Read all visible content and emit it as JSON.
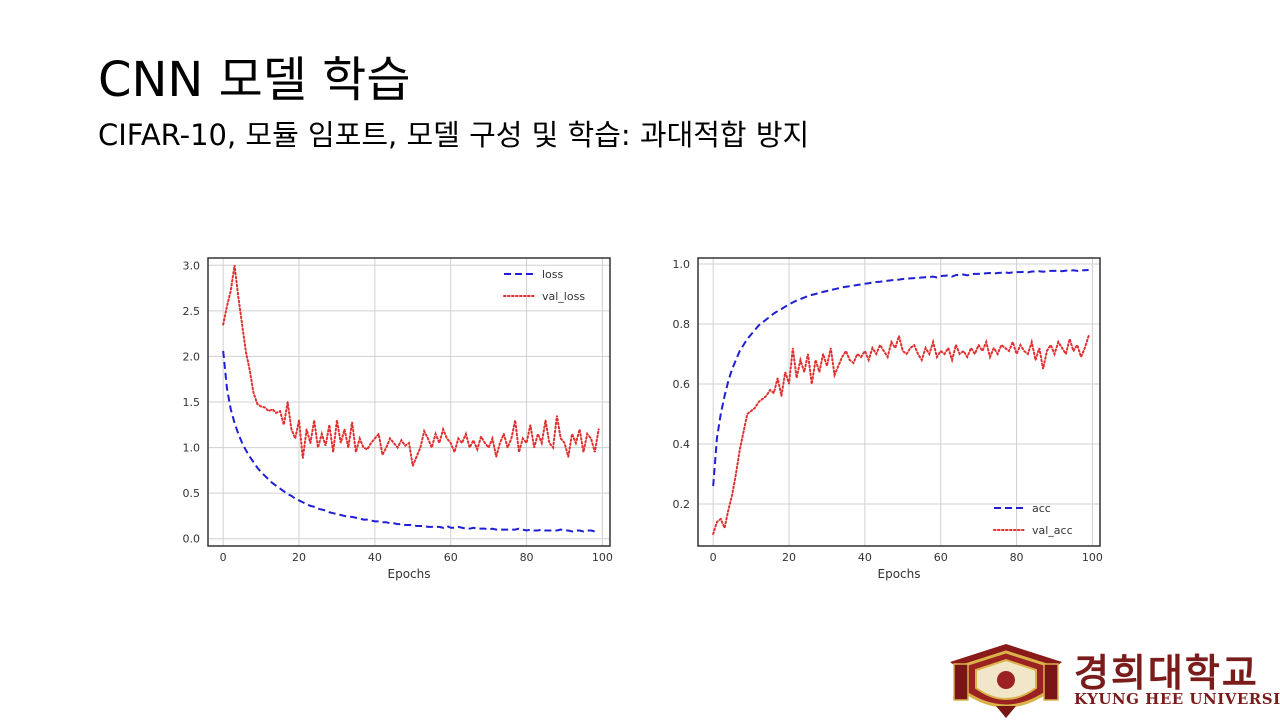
{
  "slide": {
    "title": "CNN 모델 학습",
    "subtitle": "CIFAR-10, 모듈 임포트, 모델 구성 및 학습: 과대적합 방지"
  },
  "logo": {
    "korean": "경희대학교",
    "english": "KYUNG HEE UNIVERSITY",
    "color": "#7a1c1c"
  },
  "chart_data": [
    {
      "type": "line",
      "xlabel": "Epochs",
      "ylabel": "",
      "xlim": [
        -4,
        102
      ],
      "ylim": [
        -0.08,
        3.08
      ],
      "xticks": [
        0,
        20,
        40,
        60,
        80,
        100
      ],
      "yticks": [
        0.0,
        0.5,
        1.0,
        1.5,
        2.0,
        2.5,
        3.0
      ],
      "grid": true,
      "legend": "top-right",
      "x": [
        0,
        1,
        2,
        3,
        4,
        5,
        6,
        7,
        8,
        9,
        10,
        11,
        12,
        13,
        14,
        15,
        16,
        17,
        18,
        19,
        20,
        21,
        22,
        23,
        24,
        25,
        26,
        27,
        28,
        29,
        30,
        31,
        32,
        33,
        34,
        35,
        36,
        37,
        38,
        39,
        40,
        41,
        42,
        43,
        44,
        45,
        46,
        47,
        48,
        49,
        50,
        51,
        52,
        53,
        54,
        55,
        56,
        57,
        58,
        59,
        60,
        61,
        62,
        63,
        64,
        65,
        66,
        67,
        68,
        69,
        70,
        71,
        72,
        73,
        74,
        75,
        76,
        77,
        78,
        79,
        80,
        81,
        82,
        83,
        84,
        85,
        86,
        87,
        88,
        89,
        90,
        91,
        92,
        93,
        94,
        95,
        96,
        97,
        98,
        99
      ],
      "series": [
        {
          "name": "loss",
          "style": "dashed",
          "color": "#1f1fd6",
          "values": [
            2.06,
            1.65,
            1.42,
            1.27,
            1.15,
            1.05,
            0.97,
            0.9,
            0.84,
            0.78,
            0.73,
            0.69,
            0.65,
            0.61,
            0.58,
            0.55,
            0.52,
            0.49,
            0.47,
            0.44,
            0.42,
            0.4,
            0.38,
            0.36,
            0.35,
            0.33,
            0.32,
            0.31,
            0.29,
            0.28,
            0.27,
            0.26,
            0.25,
            0.24,
            0.24,
            0.23,
            0.22,
            0.21,
            0.21,
            0.2,
            0.19,
            0.19,
            0.18,
            0.18,
            0.17,
            0.17,
            0.16,
            0.16,
            0.15,
            0.15,
            0.15,
            0.14,
            0.14,
            0.14,
            0.13,
            0.13,
            0.13,
            0.13,
            0.12,
            0.14,
            0.12,
            0.12,
            0.13,
            0.12,
            0.11,
            0.11,
            0.12,
            0.11,
            0.11,
            0.11,
            0.1,
            0.11,
            0.1,
            0.1,
            0.1,
            0.1,
            0.1,
            0.1,
            0.11,
            0.1,
            0.09,
            0.1,
            0.09,
            0.09,
            0.1,
            0.09,
            0.09,
            0.09,
            0.09,
            0.1,
            0.09,
            0.09,
            0.08,
            0.09,
            0.09,
            0.08,
            0.09,
            0.09,
            0.08,
            0.08
          ]
        },
        {
          "name": "val_loss",
          "style": "dotted",
          "color": "#e03030",
          "values": [
            2.35,
            2.55,
            2.72,
            3.0,
            2.65,
            2.35,
            2.05,
            1.85,
            1.6,
            1.48,
            1.45,
            1.44,
            1.4,
            1.42,
            1.38,
            1.4,
            1.25,
            1.5,
            1.2,
            1.1,
            1.3,
            0.88,
            1.2,
            1.05,
            1.3,
            1.0,
            1.15,
            1.02,
            1.25,
            0.95,
            1.3,
            1.05,
            1.2,
            1.0,
            1.28,
            0.95,
            1.1,
            1.0,
            0.98,
            1.05,
            1.1,
            1.15,
            0.92,
            1.0,
            1.1,
            1.05,
            1.0,
            1.08,
            1.02,
            1.05,
            0.8,
            0.9,
            1.0,
            1.18,
            1.1,
            1.0,
            1.15,
            1.05,
            1.2,
            1.1,
            1.05,
            0.95,
            1.1,
            1.05,
            1.15,
            1.0,
            1.08,
            0.98,
            1.12,
            1.05,
            1.0,
            1.1,
            0.9,
            1.05,
            1.15,
            1.0,
            1.1,
            1.3,
            0.95,
            1.1,
            1.05,
            1.25,
            1.0,
            1.15,
            1.05,
            1.3,
            1.05,
            1.0,
            1.35,
            1.1,
            1.05,
            0.9,
            1.15,
            1.05,
            1.2,
            0.95,
            1.15,
            1.1,
            0.95,
            1.2
          ]
        }
      ]
    },
    {
      "type": "line",
      "xlabel": "Epochs",
      "ylabel": "",
      "xlim": [
        -4,
        102
      ],
      "ylim": [
        0.06,
        1.02
      ],
      "xticks": [
        0,
        20,
        40,
        60,
        80,
        100
      ],
      "yticks": [
        0.2,
        0.4,
        0.6,
        0.8,
        1.0
      ],
      "grid": true,
      "legend": "bottom-right",
      "x": [
        0,
        1,
        2,
        3,
        4,
        5,
        6,
        7,
        8,
        9,
        10,
        11,
        12,
        13,
        14,
        15,
        16,
        17,
        18,
        19,
        20,
        21,
        22,
        23,
        24,
        25,
        26,
        27,
        28,
        29,
        30,
        31,
        32,
        33,
        34,
        35,
        36,
        37,
        38,
        39,
        40,
        41,
        42,
        43,
        44,
        45,
        46,
        47,
        48,
        49,
        50,
        51,
        52,
        53,
        54,
        55,
        56,
        57,
        58,
        59,
        60,
        61,
        62,
        63,
        64,
        65,
        66,
        67,
        68,
        69,
        70,
        71,
        72,
        73,
        74,
        75,
        76,
        77,
        78,
        79,
        80,
        81,
        82,
        83,
        84,
        85,
        86,
        87,
        88,
        89,
        90,
        91,
        92,
        93,
        94,
        95,
        96,
        97,
        98,
        99
      ],
      "series": [
        {
          "name": "acc",
          "style": "dashed",
          "color": "#1f1fd6",
          "values": [
            0.26,
            0.42,
            0.5,
            0.56,
            0.61,
            0.65,
            0.68,
            0.71,
            0.73,
            0.75,
            0.765,
            0.78,
            0.795,
            0.805,
            0.815,
            0.825,
            0.835,
            0.843,
            0.85,
            0.858,
            0.865,
            0.872,
            0.878,
            0.883,
            0.888,
            0.893,
            0.897,
            0.9,
            0.904,
            0.907,
            0.91,
            0.913,
            0.916,
            0.919,
            0.922,
            0.924,
            0.926,
            0.928,
            0.93,
            0.932,
            0.934,
            0.936,
            0.938,
            0.94,
            0.941,
            0.943,
            0.944,
            0.946,
            0.947,
            0.948,
            0.95,
            0.951,
            0.952,
            0.953,
            0.954,
            0.955,
            0.956,
            0.957,
            0.958,
            0.955,
            0.96,
            0.961,
            0.962,
            0.958,
            0.963,
            0.964,
            0.965,
            0.962,
            0.966,
            0.967,
            0.967,
            0.968,
            0.969,
            0.97,
            0.968,
            0.97,
            0.971,
            0.972,
            0.97,
            0.972,
            0.973,
            0.973,
            0.974,
            0.972,
            0.975,
            0.975,
            0.976,
            0.974,
            0.976,
            0.977,
            0.977,
            0.978,
            0.976,
            0.978,
            0.978,
            0.979,
            0.977,
            0.979,
            0.979,
            0.98
          ]
        },
        {
          "name": "val_acc",
          "style": "dotted",
          "color": "#e03030",
          "values": [
            0.1,
            0.14,
            0.15,
            0.12,
            0.18,
            0.23,
            0.3,
            0.38,
            0.44,
            0.5,
            0.51,
            0.52,
            0.54,
            0.55,
            0.56,
            0.58,
            0.57,
            0.62,
            0.56,
            0.64,
            0.6,
            0.72,
            0.62,
            0.68,
            0.64,
            0.7,
            0.6,
            0.68,
            0.64,
            0.7,
            0.66,
            0.72,
            0.63,
            0.66,
            0.69,
            0.71,
            0.68,
            0.67,
            0.7,
            0.69,
            0.71,
            0.68,
            0.72,
            0.7,
            0.73,
            0.71,
            0.69,
            0.74,
            0.72,
            0.76,
            0.71,
            0.7,
            0.72,
            0.73,
            0.7,
            0.68,
            0.72,
            0.7,
            0.74,
            0.69,
            0.71,
            0.7,
            0.72,
            0.68,
            0.73,
            0.7,
            0.71,
            0.69,
            0.72,
            0.7,
            0.73,
            0.71,
            0.74,
            0.69,
            0.72,
            0.7,
            0.73,
            0.72,
            0.71,
            0.74,
            0.7,
            0.73,
            0.71,
            0.7,
            0.74,
            0.68,
            0.72,
            0.65,
            0.71,
            0.73,
            0.7,
            0.74,
            0.72,
            0.7,
            0.75,
            0.71,
            0.73,
            0.69,
            0.72,
            0.76
          ]
        }
      ]
    }
  ]
}
